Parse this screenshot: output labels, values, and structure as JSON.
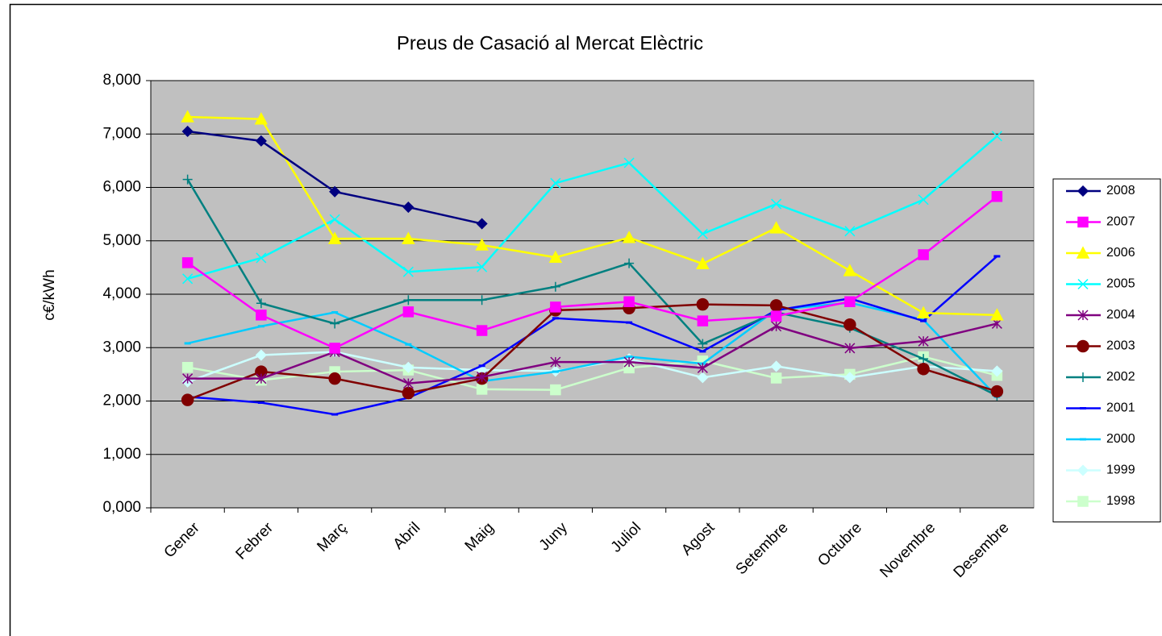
{
  "chart_data": {
    "type": "line",
    "title": "Preus de Casació al Mercat Elèctric",
    "y_label": "c€/kWh",
    "categories": [
      "Gener",
      "Febrer",
      "Març",
      "Abril",
      "Maig",
      "Juny",
      "Juliol",
      "Agost",
      "Setembre",
      "Octubre",
      "Novembre",
      "Desembre"
    ],
    "ylim": [
      0,
      8
    ],
    "yticks": [
      {
        "value": 0,
        "label": "0,000"
      },
      {
        "value": 1,
        "label": "1,000"
      },
      {
        "value": 2,
        "label": "2,000"
      },
      {
        "value": 3,
        "label": "3,000"
      },
      {
        "value": 4,
        "label": "4,000"
      },
      {
        "value": 5,
        "label": "5,000"
      },
      {
        "value": 6,
        "label": "6,000"
      },
      {
        "value": 7,
        "label": "7,000"
      },
      {
        "value": 8,
        "label": "8,000"
      }
    ],
    "grid": true,
    "legend": "right",
    "series": [
      {
        "name": "2008",
        "color": "#000080",
        "marker": "diamond",
        "values": [
          7.05,
          6.87,
          5.92,
          5.63,
          5.32,
          null,
          null,
          null,
          null,
          null,
          null,
          null
        ]
      },
      {
        "name": "2007",
        "color": "#FF00FF",
        "marker": "square",
        "values": [
          4.59,
          3.61,
          2.99,
          3.67,
          3.32,
          3.76,
          3.86,
          3.5,
          3.59,
          3.86,
          4.74,
          5.83
        ]
      },
      {
        "name": "2006",
        "color": "#FFFF00",
        "marker": "triangle",
        "values": [
          7.32,
          7.28,
          5.04,
          5.04,
          4.92,
          4.69,
          5.06,
          4.57,
          5.24,
          4.44,
          3.65,
          3.61
        ]
      },
      {
        "name": "2005",
        "color": "#00FFFF",
        "marker": "x",
        "values": [
          4.29,
          4.68,
          5.4,
          4.42,
          4.51,
          6.08,
          6.46,
          5.13,
          5.69,
          5.18,
          5.77,
          6.96
        ]
      },
      {
        "name": "2004",
        "color": "#800080",
        "marker": "star",
        "values": [
          2.42,
          2.42,
          2.92,
          2.33,
          2.45,
          2.73,
          2.73,
          2.62,
          3.4,
          2.99,
          3.12,
          3.45
        ]
      },
      {
        "name": "2003",
        "color": "#800000",
        "marker": "circle",
        "values": [
          2.02,
          2.55,
          2.42,
          2.15,
          2.42,
          3.7,
          3.74,
          3.81,
          3.79,
          3.43,
          2.6,
          2.18
        ]
      },
      {
        "name": "2002",
        "color": "#008080",
        "marker": "plus",
        "values": [
          6.15,
          3.83,
          3.45,
          3.89,
          3.89,
          4.14,
          4.58,
          3.07,
          3.66,
          3.37,
          2.79,
          2.1
        ]
      },
      {
        "name": "2001",
        "color": "#0000FF",
        "marker": "dash",
        "values": [
          2.08,
          1.97,
          1.75,
          2.06,
          2.66,
          3.55,
          3.47,
          2.93,
          3.7,
          3.92,
          3.5,
          4.71
        ]
      },
      {
        "name": "2000",
        "color": "#00CCFF",
        "marker": "dash",
        "values": [
          3.08,
          3.4,
          3.66,
          3.06,
          2.37,
          2.55,
          2.83,
          2.7,
          3.71,
          3.84,
          3.52,
          2.08
        ]
      },
      {
        "name": "1999",
        "color": "#CCFFFF",
        "marker": "diamond",
        "values": [
          2.36,
          2.86,
          2.92,
          2.63,
          2.58,
          2.56,
          2.79,
          2.44,
          2.65,
          2.44,
          2.65,
          2.56
        ]
      },
      {
        "name": "1998",
        "color": "#CCFFCC",
        "marker": "square",
        "values": [
          2.63,
          2.39,
          2.55,
          2.58,
          2.22,
          2.21,
          2.62,
          2.75,
          2.43,
          2.5,
          2.83,
          2.48
        ]
      }
    ]
  }
}
